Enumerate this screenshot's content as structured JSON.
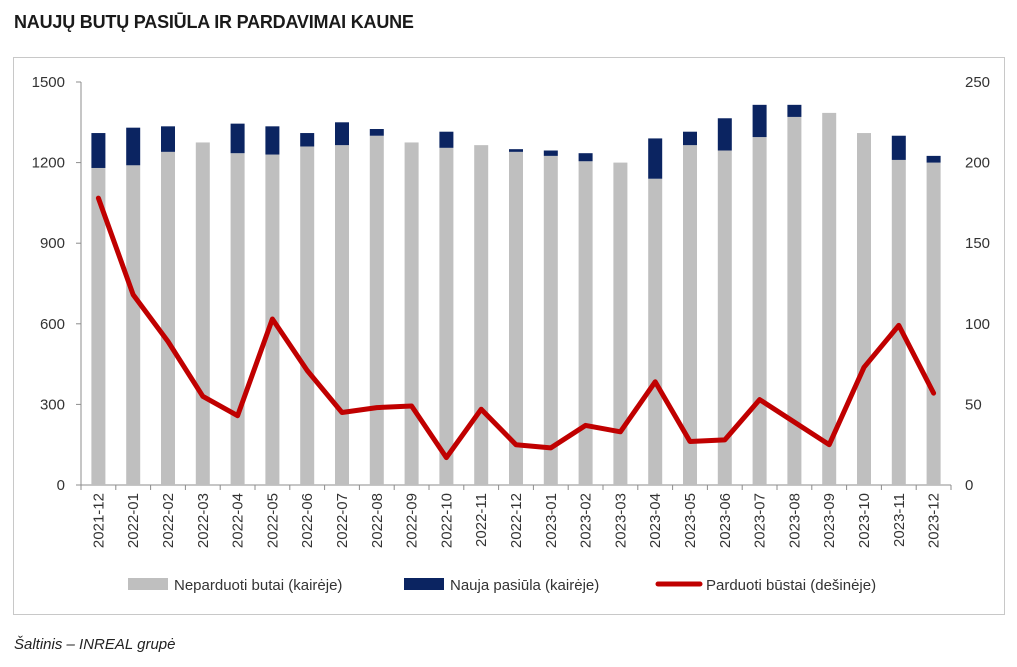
{
  "title": "NAUJŲ BUTŲ PASIŪLA IR PARDAVIMAI KAUNE",
  "source": "Šaltinis – INREAL grupė",
  "colors": {
    "unsold": "#bfbfbf",
    "new_supply": "#0b2461",
    "sold": "#c00000"
  },
  "chart_data": {
    "type": "bar",
    "stacked": true,
    "categories": [
      "2021-12",
      "2022-01",
      "2022-02",
      "2022-03",
      "2022-04",
      "2022-05",
      "2022-06",
      "2022-07",
      "2022-08",
      "2022-09",
      "2022-10",
      "2022-11",
      "2022-12",
      "2023-01",
      "2023-02",
      "2023-03",
      "2023-04",
      "2023-05",
      "2023-06",
      "2023-07",
      "2023-08",
      "2023-09",
      "2023-10",
      "2023-11",
      "2023-12"
    ],
    "series": [
      {
        "name": "Neparduoti butai (kairėje)",
        "axis": "left",
        "type": "bar",
        "values": [
          1180,
          1190,
          1240,
          1275,
          1235,
          1230,
          1260,
          1265,
          1300,
          1275,
          1255,
          1265,
          1240,
          1225,
          1205,
          1200,
          1140,
          1265,
          1245,
          1295,
          1370,
          1385,
          1310,
          1210,
          1200
        ]
      },
      {
        "name": "Nauja pasiūla (kairėje)",
        "axis": "left",
        "type": "bar",
        "values": [
          130,
          140,
          95,
          0,
          110,
          105,
          50,
          85,
          25,
          0,
          60,
          0,
          10,
          20,
          30,
          0,
          150,
          50,
          120,
          120,
          45,
          0,
          0,
          90,
          25
        ]
      },
      {
        "name": "Parduoti būstai (dešinėje)",
        "axis": "right",
        "type": "line",
        "values": [
          178,
          118,
          89,
          55,
          43,
          103,
          71,
          45,
          48,
          49,
          17,
          47,
          25,
          23,
          37,
          33,
          64,
          27,
          28,
          53,
          39,
          25,
          73,
          99,
          57
        ]
      }
    ],
    "y_left": {
      "min": 0,
      "max": 1500,
      "ticks": [
        0,
        300,
        600,
        900,
        1200,
        1500
      ]
    },
    "y_right": {
      "min": 0,
      "max": 250,
      "ticks": [
        0,
        50,
        100,
        150,
        200,
        250
      ]
    },
    "grid": false,
    "legend_position": "bottom"
  }
}
